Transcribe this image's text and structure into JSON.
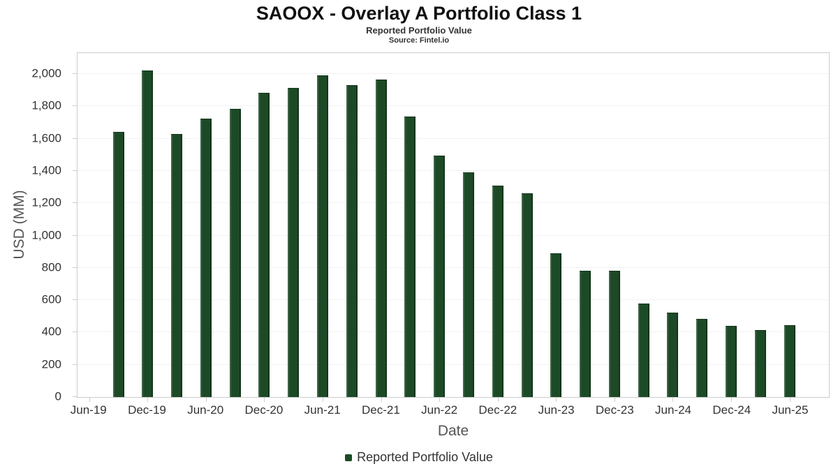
{
  "chart_data": {
    "type": "bar",
    "title": "SAOOX - Overlay A Portfolio Class 1",
    "subtitle": "Reported Portfolio Value",
    "source": "Source: Fintel.io",
    "xlabel": "Date",
    "ylabel": "USD (MM)",
    "legend": [
      "Reported Portfolio Value"
    ],
    "legend_position": "bottom",
    "grid": "faint-horizontal",
    "bar_color": "#1d4a26",
    "categories": [
      "Sep-19",
      "Dec-19",
      "Mar-20",
      "Jun-20",
      "Sep-20",
      "Dec-20",
      "Mar-21",
      "Jun-21",
      "Sep-21",
      "Dec-21",
      "Mar-22",
      "Jun-22",
      "Sep-22",
      "Dec-22",
      "Mar-23",
      "Jun-23",
      "Sep-23",
      "Dec-23",
      "Mar-24",
      "Jun-24",
      "Sep-24",
      "Dec-24",
      "Mar-25",
      "Jun-25"
    ],
    "values": [
      1640,
      2020,
      1630,
      1725,
      1785,
      1885,
      1915,
      1990,
      1930,
      1965,
      1735,
      1495,
      1390,
      1310,
      1260,
      890,
      780,
      780,
      578,
      522,
      485,
      440,
      415,
      443
    ],
    "x_tick_labels": [
      "Jun-19",
      "Dec-19",
      "Jun-20",
      "Dec-20",
      "Jun-21",
      "Dec-21",
      "Jun-22",
      "Dec-22",
      "Jun-23",
      "Dec-23",
      "Jun-24",
      "Dec-24",
      "Jun-25"
    ],
    "y_ticks": [
      0,
      200,
      400,
      600,
      800,
      1000,
      1200,
      1400,
      1600,
      1800,
      2000
    ],
    "ylim": [
      0,
      2130
    ],
    "x_range_quarters": [
      -0.4,
      25.35
    ],
    "tick_step_quarters": 2,
    "bar_start_offset_quarters": 1,
    "bar_step_quarters": 1
  }
}
